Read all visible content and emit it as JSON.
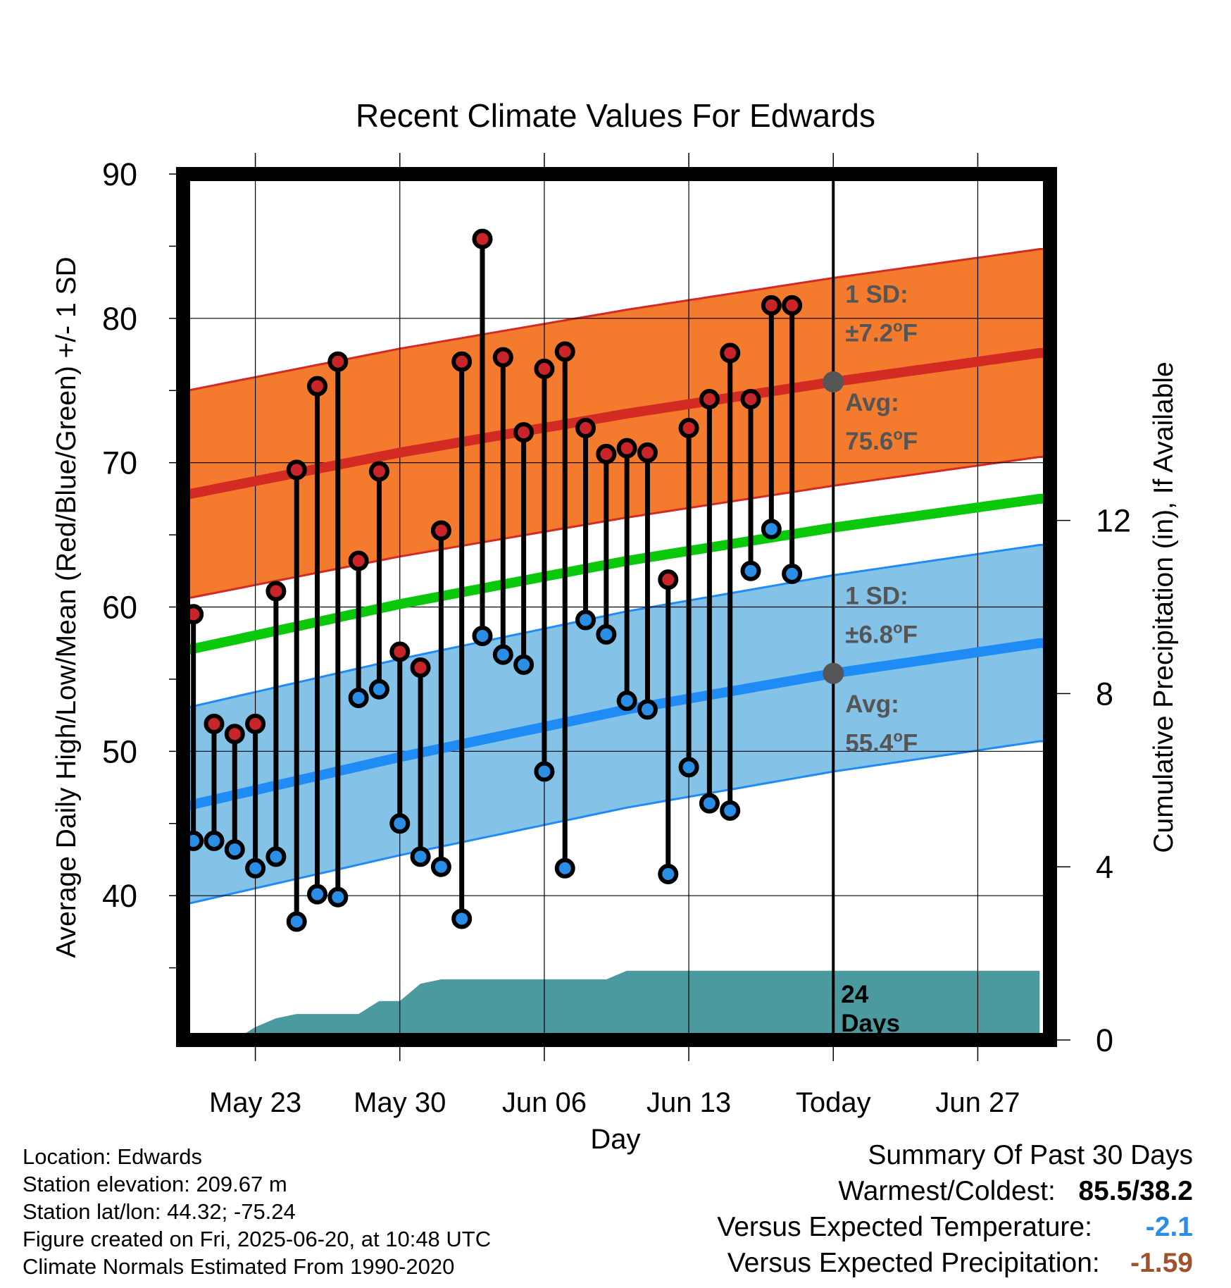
{
  "chart_data": {
    "type": "line",
    "title": "Recent Climate Values For Edwards",
    "xlabel": "Day",
    "ylabel": "Average Daily High/Low/Mean (Red/Blue/Green) +/- 1 SD",
    "y2label": "Cumulative Precipitation (in), If Available",
    "ylim": [
      30,
      90
    ],
    "y2lim": [
      0,
      20
    ],
    "y_ticks": [
      40,
      50,
      60,
      70,
      80,
      90
    ],
    "y2_ticks": [
      0,
      4,
      8,
      12
    ],
    "x_tick_labels": [
      "May 23",
      "May 30",
      "Jun 06",
      "Jun 13",
      "Today",
      "Jun 27"
    ],
    "x_tick_dates": [
      "2025-05-23",
      "2025-05-30",
      "2025-06-06",
      "2025-06-13",
      "2025-06-20",
      "2025-06-27"
    ],
    "x_range": [
      "2025-05-19 12:00",
      "2025-06-30 12:00"
    ],
    "today": "2025-06-20",
    "grid": true,
    "daily": {
      "dates": [
        "2025-05-20",
        "2025-05-21",
        "2025-05-22",
        "2025-05-23",
        "2025-05-24",
        "2025-05-25",
        "2025-05-26",
        "2025-05-27",
        "2025-05-28",
        "2025-05-29",
        "2025-05-30",
        "2025-05-31",
        "2025-06-01",
        "2025-06-02",
        "2025-06-03",
        "2025-06-04",
        "2025-06-05",
        "2025-06-06",
        "2025-06-07",
        "2025-06-08",
        "2025-06-09",
        "2025-06-10",
        "2025-06-11",
        "2025-06-12",
        "2025-06-13",
        "2025-06-14",
        "2025-06-15",
        "2025-06-16",
        "2025-06-17",
        "2025-06-18",
        "2025-06-19"
      ],
      "highs": [
        59.5,
        51.9,
        51.2,
        51.9,
        61.1,
        69.5,
        75.3,
        77.0,
        63.2,
        69.4,
        56.9,
        55.8,
        65.3,
        77.0,
        85.5,
        77.3,
        72.1,
        76.5,
        77.7,
        72.4,
        70.6,
        71.0,
        70.7,
        61.9,
        72.4,
        74.4,
        77.6,
        74.4,
        80.9,
        80.9,
        null
      ],
      "lows": [
        43.8,
        43.8,
        43.2,
        41.9,
        42.7,
        38.2,
        40.1,
        39.9,
        53.7,
        54.3,
        45.0,
        42.7,
        42.0,
        38.4,
        58.0,
        56.7,
        56.0,
        48.6,
        41.9,
        59.1,
        58.1,
        53.5,
        52.9,
        41.5,
        48.9,
        46.4,
        45.9,
        62.5,
        65.4,
        62.3,
        null
      ]
    },
    "normals": {
      "dates": [
        "2025-05-19",
        "2025-05-30",
        "2025-06-10",
        "2025-06-20",
        "2025-06-30"
      ],
      "high_avg": [
        67.6,
        70.7,
        73.4,
        75.6,
        77.6
      ],
      "high_sd": 7.2,
      "low_avg": [
        46.0,
        49.6,
        52.9,
        55.4,
        57.5
      ],
      "low_sd": 6.8,
      "mean_avg": [
        56.8,
        60.2,
        63.2,
        65.5,
        67.5
      ]
    },
    "precipitation": {
      "dates": [
        "2025-05-22",
        "2025-05-23",
        "2025-05-24",
        "2025-05-25",
        "2025-05-26",
        "2025-05-27",
        "2025-05-28",
        "2025-05-29",
        "2025-05-30",
        "2025-05-31",
        "2025-06-01",
        "2025-06-02",
        "2025-06-03",
        "2025-06-09",
        "2025-06-10",
        "2025-06-30"
      ],
      "cumulative": [
        0,
        0.3,
        0.5,
        0.6,
        0.6,
        0.6,
        0.6,
        0.9,
        0.9,
        1.3,
        1.4,
        1.4,
        1.4,
        1.4,
        1.6,
        1.6
      ]
    },
    "annotations": {
      "high_sd_label": "1 SD:",
      "high_sd_value": "±7.2",
      "high_avg_label": "Avg:",
      "high_avg_value": "75.6",
      "low_sd_label": "1 SD:",
      "low_sd_value": "±6.8",
      "low_avg_label": "Avg:",
      "low_avg_value": "55.4",
      "unit_symbol": "o",
      "unit_letter": "F",
      "days_count": "24",
      "days_label": "Days"
    },
    "colors": {
      "high_band": "#f47a2e",
      "high_line": "#d42a24",
      "low_band": "#85c2e8",
      "low_line": "#1f8cf6",
      "mean_line": "#0ac80a",
      "precip": "#4a9aa0",
      "annotation_text": "#555555",
      "high_marker": "#c8242a",
      "low_marker": "#2a8ee6"
    }
  },
  "info": {
    "location": "Location: Edwards",
    "elevation": "Station elevation: 209.67 m",
    "latlon": "Station lat/lon: 44.32; -75.24",
    "created": "Figure created on Fri, 2025-06-20, at 10:48 UTC",
    "normals": "Climate Normals Estimated From 1990-2020"
  },
  "summary": {
    "title": "Summary Of Past 30 Days",
    "warm_cold_label": "Warmest/Coldest:",
    "warm_cold_value": "85.5/38.2",
    "temp_label": "Versus Expected Temperature:",
    "temp_value": "-2.1",
    "temp_color": "#2a8ee6",
    "precip_label": "Versus Expected Precipitation:",
    "precip_value": "-1.59",
    "precip_color": "#a0522d"
  }
}
